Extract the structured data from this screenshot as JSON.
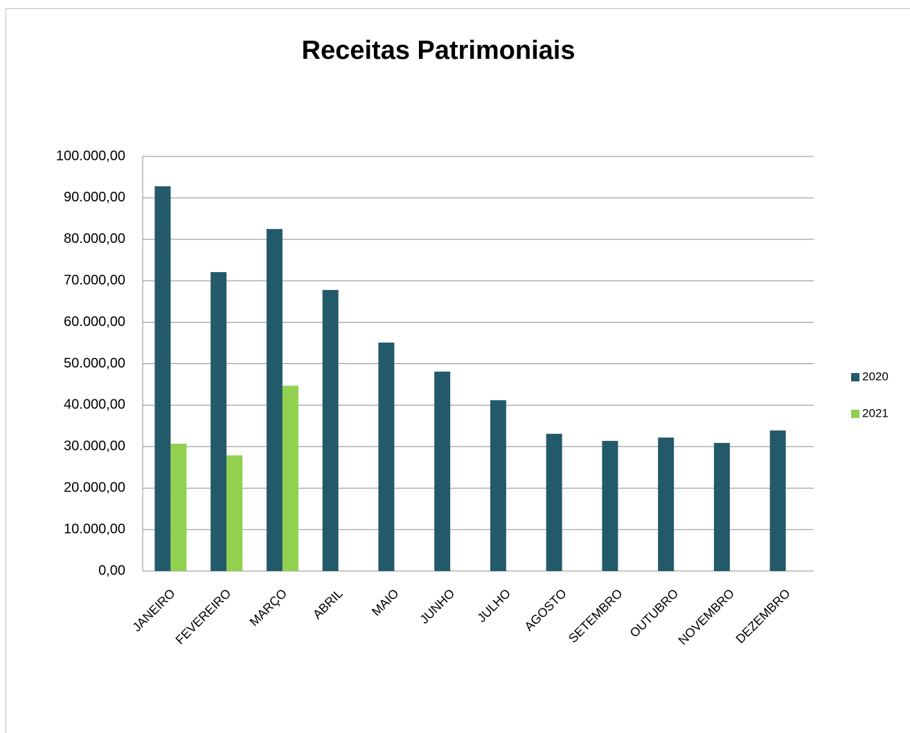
{
  "chart_data": {
    "type": "bar",
    "title": "Receitas Patrimoniais",
    "categories": [
      "JANEIRO",
      "FEVEREIRO",
      "MARÇO",
      "ABRIL",
      "MAIO",
      "JUNHO",
      "JULHO",
      "AGOSTO",
      "SETEMBRO",
      "OUTUBRO",
      "NOVEMBRO",
      "DEZEMBRO"
    ],
    "series": [
      {
        "name": "2020",
        "color": "#235a69",
        "values": [
          92800,
          72100,
          82500,
          67800,
          55100,
          48100,
          41200,
          33100,
          31400,
          32200,
          30900,
          33900
        ]
      },
      {
        "name": "2021",
        "color": "#92d050",
        "values": [
          30700,
          27900,
          44700,
          null,
          null,
          null,
          null,
          null,
          null,
          null,
          null,
          null
        ]
      }
    ],
    "ylim": [
      0,
      100000
    ],
    "yticks": [
      {
        "value": 0,
        "label": "0,00"
      },
      {
        "value": 10000,
        "label": "10.000,00"
      },
      {
        "value": 20000,
        "label": "20.000,00"
      },
      {
        "value": 30000,
        "label": "30.000,00"
      },
      {
        "value": 40000,
        "label": "40.000,00"
      },
      {
        "value": 50000,
        "label": "50.000,00"
      },
      {
        "value": 60000,
        "label": "60.000,00"
      },
      {
        "value": 70000,
        "label": "70.000,00"
      },
      {
        "value": 80000,
        "label": "80.000,00"
      },
      {
        "value": 90000,
        "label": "90.000,00"
      },
      {
        "value": 100000,
        "label": "100.000,00"
      }
    ],
    "grid": true,
    "legend": "right"
  }
}
